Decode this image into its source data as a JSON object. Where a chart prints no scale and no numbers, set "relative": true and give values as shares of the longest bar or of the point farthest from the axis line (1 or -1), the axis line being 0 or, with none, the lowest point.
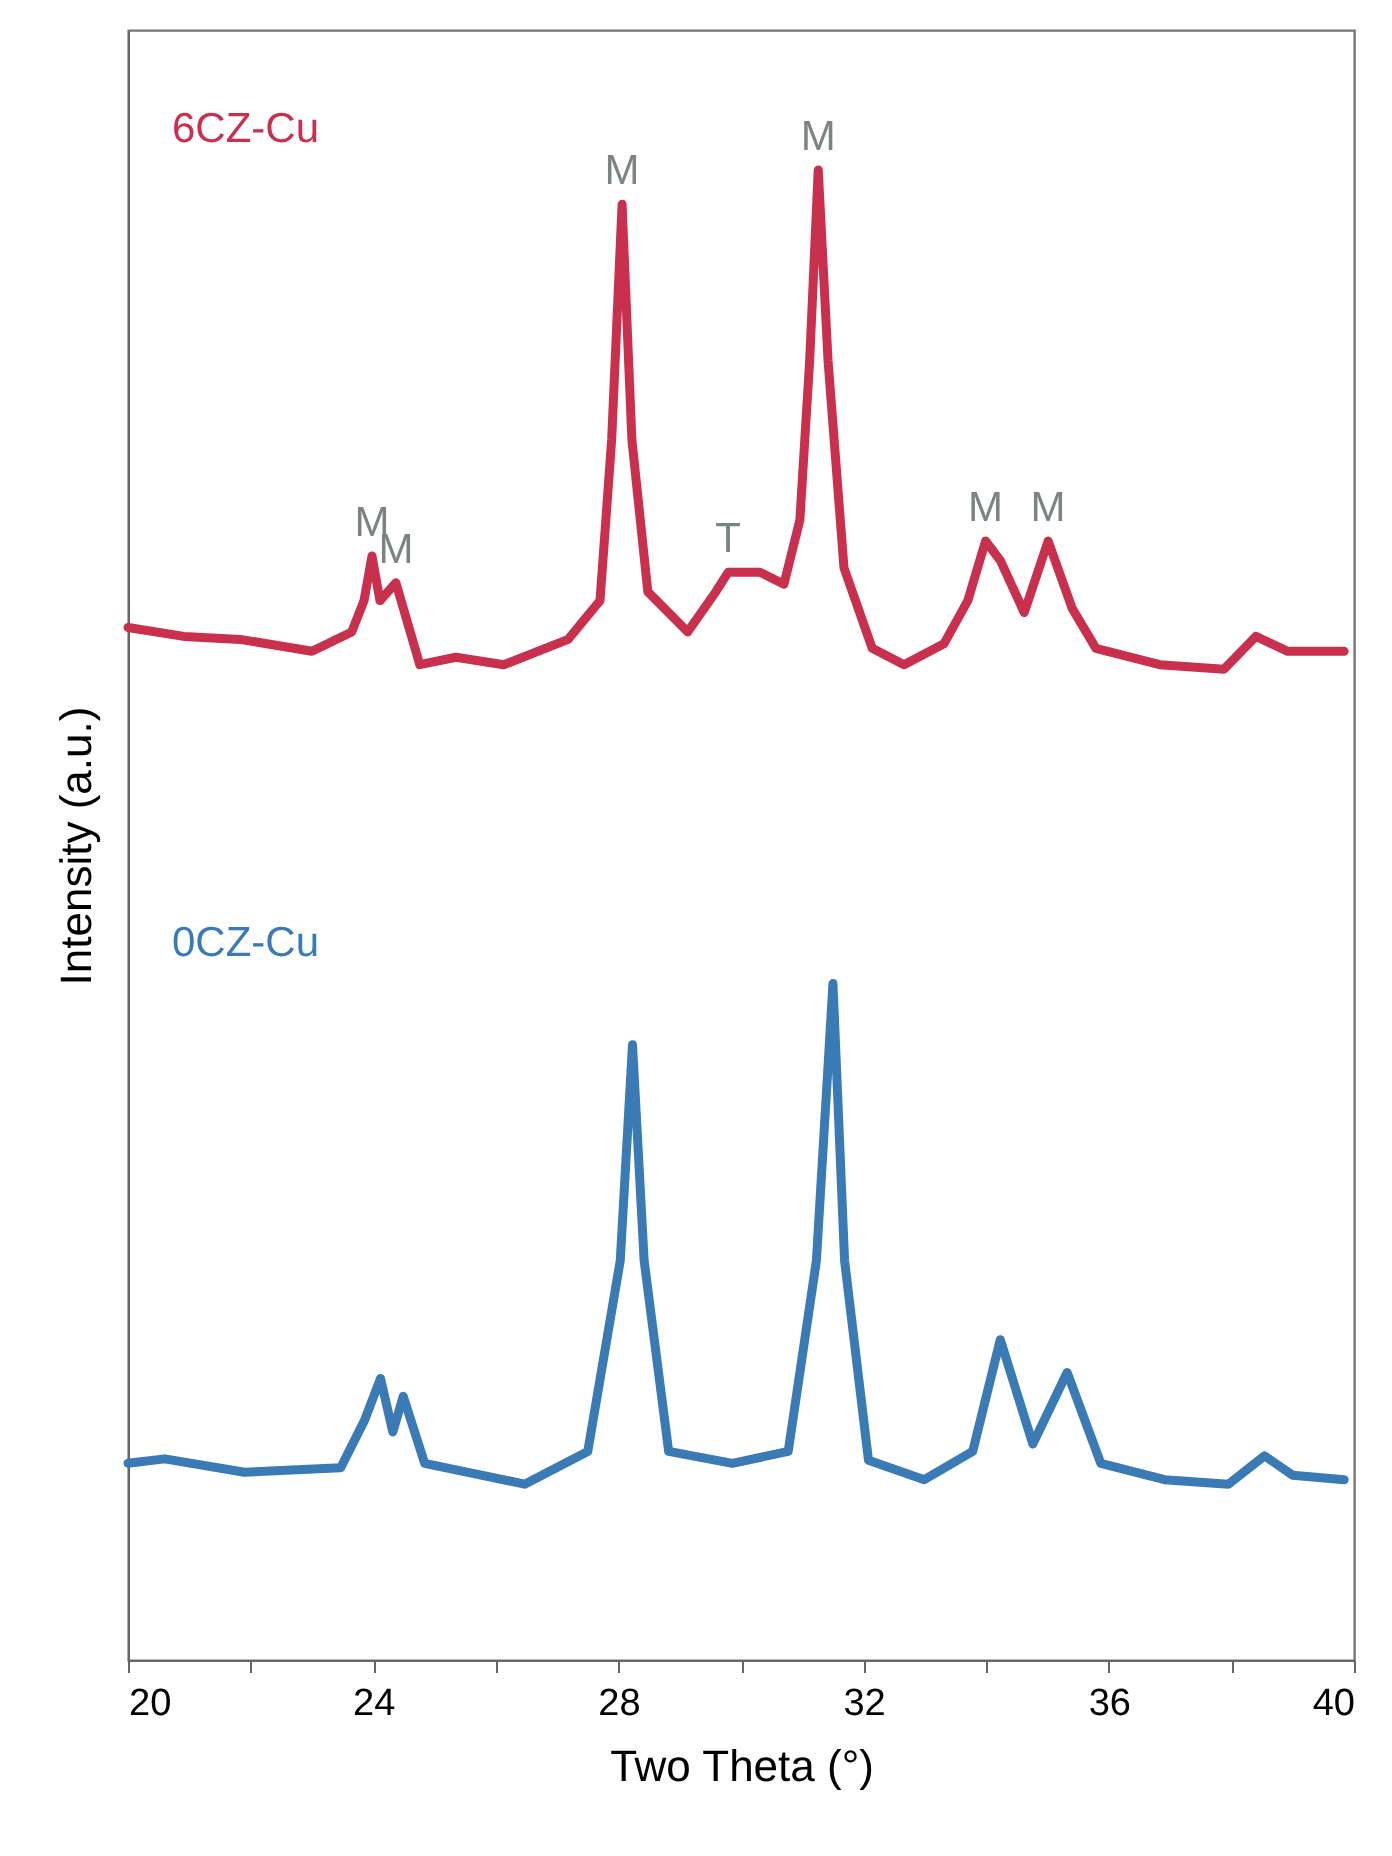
{
  "chart_data": {
    "type": "line",
    "relative": true,
    "xlabel": "Two Theta (°)",
    "ylabel": "Intensity (a.u.)",
    "xlim": [
      20,
      40
    ],
    "xticks": [
      20,
      {
        "value": 22,
        "label": null
      },
      24,
      {
        "value": 26,
        "label": null
      },
      28,
      {
        "value": 30,
        "label": null
      },
      32,
      {
        "value": 34,
        "label": null
      },
      36,
      {
        "value": 38,
        "label": null
      },
      40
    ],
    "grid": false,
    "legend": false,
    "marker": "none",
    "line_style": "solid",
    "tick_labels": "x",
    "series": [
      {
        "name": "6CZ-Cu",
        "color": "#c9304d",
        "x": [
          20,
          20.91,
          21.83,
          23.0,
          23.65,
          23.85,
          23.98,
          24.11,
          24.37,
          24.76,
          25.35,
          26.13,
          27.18,
          27.7,
          27.89,
          28.06,
          28.22,
          28.48,
          29.13,
          29.59,
          29.79,
          30.31,
          30.7,
          30.96,
          31.12,
          31.26,
          31.42,
          31.68,
          32.14,
          32.66,
          33.31,
          33.7,
          33.99,
          34.23,
          34.62,
          35.01,
          35.4,
          35.79,
          36.83,
          37.88,
          38.4,
          38.92,
          39.84
        ],
        "values": [
          0.693,
          0.687,
          0.685,
          0.677,
          0.69,
          0.711,
          0.741,
          0.711,
          0.723,
          0.668,
          0.673,
          0.668,
          0.685,
          0.711,
          0.819,
          0.977,
          0.819,
          0.717,
          0.69,
          0.717,
          0.73,
          0.73,
          0.722,
          0.765,
          0.872,
          1.0,
          0.872,
          0.733,
          0.679,
          0.668,
          0.682,
          0.711,
          0.751,
          0.738,
          0.703,
          0.751,
          0.706,
          0.679,
          0.668,
          0.665,
          0.687,
          0.677,
          0.677
        ]
      },
      {
        "name": "0CZ-Cu",
        "color": "#3a7ab5",
        "x": [
          20,
          20.6,
          21.9,
          23.47,
          23.86,
          24.12,
          24.32,
          24.49,
          24.84,
          26.47,
          27.5,
          28.03,
          28.23,
          28.42,
          28.82,
          29.86,
          30.77,
          31.23,
          31.5,
          31.69,
          32.08,
          32.99,
          33.78,
          34.23,
          34.76,
          35.32,
          35.87,
          36.91,
          37.95,
          38.54,
          39.0,
          39.84
        ],
        "values": [
          0.132,
          0.135,
          0.126,
          0.129,
          0.161,
          0.189,
          0.153,
          0.177,
          0.132,
          0.118,
          0.14,
          0.268,
          0.413,
          0.268,
          0.14,
          0.132,
          0.14,
          0.268,
          0.454,
          0.268,
          0.134,
          0.121,
          0.14,
          0.215,
          0.145,
          0.193,
          0.132,
          0.121,
          0.118,
          0.137,
          0.124,
          0.121
        ]
      }
    ],
    "annotations": [
      {
        "text": "M",
        "x": 23.98,
        "y": 0.741
      },
      {
        "text": "M",
        "x": 24.37,
        "y": 0.723
      },
      {
        "text": "M",
        "x": 28.06,
        "y": 0.977
      },
      {
        "text": "T",
        "x": 29.79,
        "y": 0.73
      },
      {
        "text": "M",
        "x": 31.26,
        "y": 1.0
      },
      {
        "text": "M",
        "x": 33.99,
        "y": 0.751
      },
      {
        "text": "M",
        "x": 35.01,
        "y": 0.751
      }
    ]
  }
}
